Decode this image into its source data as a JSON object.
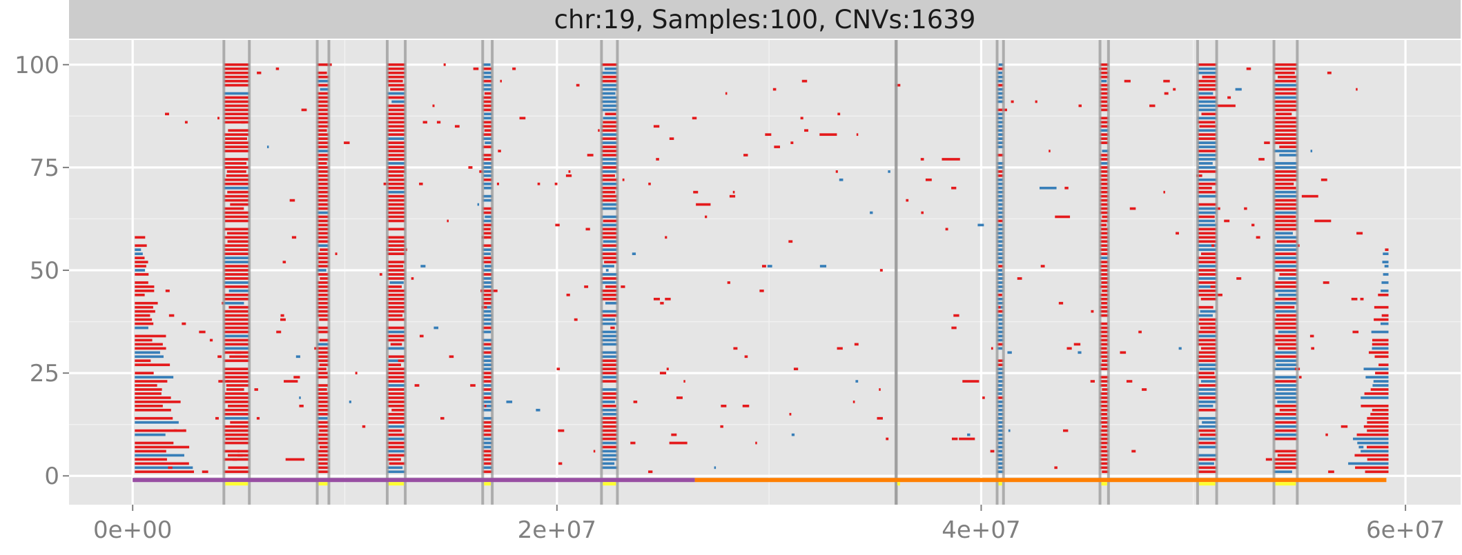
{
  "chart_data": {
    "type": "scatter",
    "title": "chr:19, Samples:100, CNVs:1639",
    "xlabel": "",
    "ylabel": "",
    "xlim": [
      -3000000,
      62600000
    ],
    "ylim": [
      -7,
      106
    ],
    "x_ticks": [
      0,
      20000000,
      40000000,
      60000000
    ],
    "x_tick_labels": [
      "0e+00",
      "2e+07",
      "4e+07",
      "6e+07"
    ],
    "y_ticks": [
      0,
      25,
      50,
      75,
      100
    ],
    "y_tick_labels": [
      "0",
      "25",
      "50",
      "75",
      "100"
    ],
    "grid": true,
    "legend": "none",
    "colors": {
      "gain": "#e41a1c",
      "loss": "#377eb8",
      "panel": "#e5e5e5",
      "chrom_arm_p": "#984ea3",
      "chrom_arm_q": "#ff7f00",
      "cluster_marker": "#ffff33",
      "cluster_boundary": "#999999"
    },
    "chromosome_arms": [
      {
        "arm": "p",
        "start": 0,
        "end": 26500000,
        "color": "#984ea3"
      },
      {
        "arm": "q",
        "start": 26500000,
        "end": 59100000,
        "color": "#ff7f00"
      }
    ],
    "cnv_clusters": [
      {
        "start": 4300000,
        "end": 5500000,
        "mix": "gain-heavy"
      },
      {
        "start": 8700000,
        "end": 9250000,
        "mix": "gain-heavy"
      },
      {
        "start": 12000000,
        "end": 12850000,
        "mix": "gain-heavy"
      },
      {
        "start": 16500000,
        "end": 16950000,
        "mix": "mixed"
      },
      {
        "start": 22100000,
        "end": 22850000,
        "mix": "mixed"
      },
      {
        "start": 35980000,
        "end": 36000000,
        "mix": "sparse"
      },
      {
        "start": 40750000,
        "end": 41050000,
        "mix": "loss-heavy"
      },
      {
        "start": 45600000,
        "end": 46000000,
        "mix": "gain-heavy"
      },
      {
        "start": 50200000,
        "end": 51100000,
        "mix": "mixed"
      },
      {
        "start": 53800000,
        "end": 54900000,
        "mix": "mixed"
      }
    ],
    "edge_clusters": [
      {
        "side": "left",
        "anchor": 100000,
        "max_sample": 60,
        "max_width": 3000000
      },
      {
        "side": "right",
        "anchor": 59200000,
        "max_sample": 55,
        "max_width": 2000000
      }
    ],
    "samples": 100,
    "cnv_count": 1639
  }
}
